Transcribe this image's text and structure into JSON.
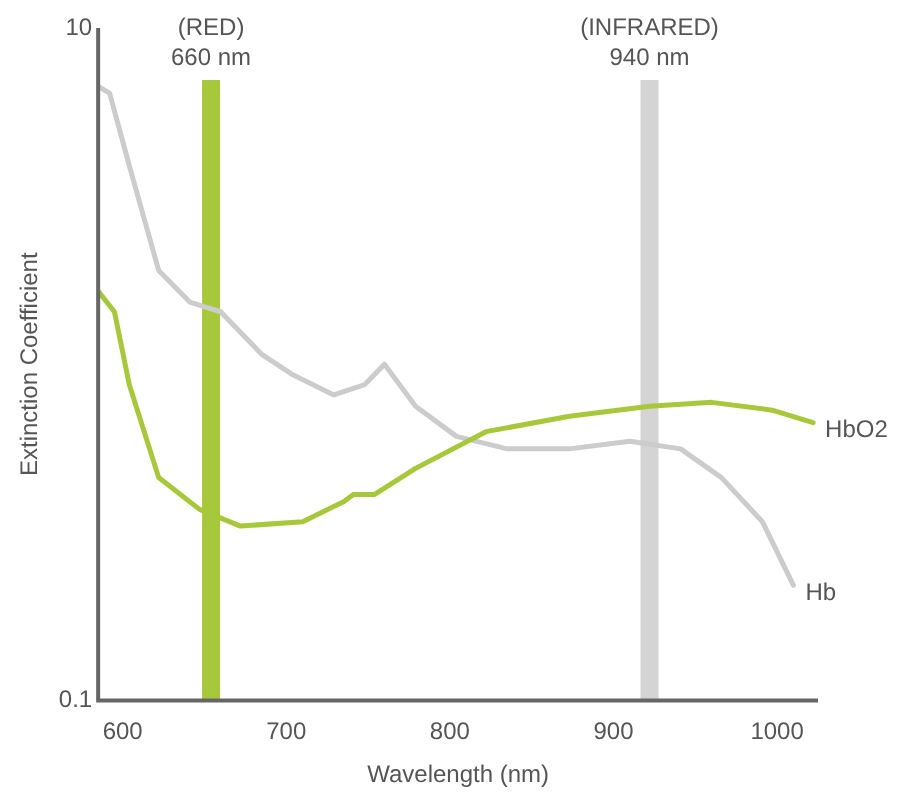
{
  "chart_data": {
    "type": "line",
    "xlabel": "Wavelength (nm)",
    "ylabel": "Extinction Coefficient",
    "log": "y",
    "xlim": [
      585,
      1025
    ],
    "xticks": [
      600,
      700,
      800,
      900,
      1000
    ],
    "ylim": [
      0.1,
      10
    ],
    "yticks": [
      0.1,
      10
    ],
    "grid": false,
    "legend": false,
    "marker": "none",
    "line_style": "solid",
    "series": [
      {
        "name": "HbO2",
        "color": "#a8c83c",
        "x": [
          585,
          595,
          604,
          622,
          647,
          672,
          710,
          735,
          741,
          754,
          779,
          822,
          873,
          922,
          960,
          997,
          1022
        ],
        "values": [
          1.65,
          1.43,
          0.87,
          0.46,
          0.37,
          0.33,
          0.34,
          0.39,
          0.41,
          0.41,
          0.49,
          0.63,
          0.7,
          0.75,
          0.77,
          0.73,
          0.67
        ]
      },
      {
        "name": "Hb",
        "color": "#cccccc",
        "x": [
          585,
          592,
          604,
          622,
          641,
          660,
          685,
          704,
          729,
          748,
          760,
          779,
          804,
          835,
          873,
          910,
          941,
          966,
          991,
          1010
        ],
        "values": [
          6.7,
          6.4,
          3.9,
          1.9,
          1.53,
          1.43,
          1.07,
          0.93,
          0.81,
          0.87,
          1.0,
          0.75,
          0.61,
          0.56,
          0.56,
          0.59,
          0.56,
          0.46,
          0.34,
          0.22
        ]
      }
    ],
    "ref_lines": [
      {
        "axis": "x",
        "value": 654,
        "label": "(RED) 660 nm",
        "color": "#a8c83c"
      },
      {
        "axis": "x",
        "value": 922,
        "label": "(INFRARED) 940 nm",
        "color": "#d4d4d4"
      }
    ]
  }
}
